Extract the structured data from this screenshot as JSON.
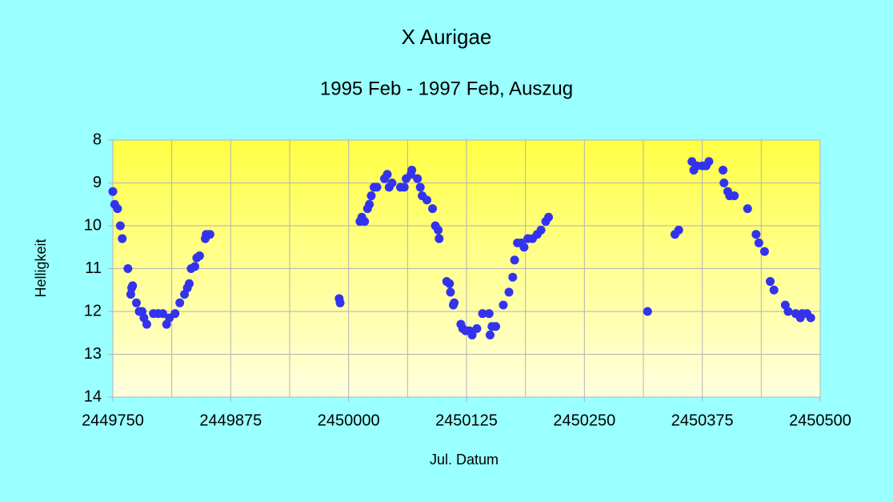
{
  "chart_data": {
    "type": "scatter",
    "title": "X Aurigae",
    "subtitle": "1995 Feb - 1997 Feb, Auszug",
    "x_label": "Jul. Datum",
    "y_label": "Helligkeit",
    "xlim": [
      2449750,
      2450500
    ],
    "xticks": [
      2449750,
      2449875,
      2450000,
      2450125,
      2450250,
      2450375,
      2450500
    ],
    "x_minor_grid": [
      2449812.5,
      2449937.5,
      2450062.5,
      2450187.5,
      2450312.5,
      2450437.5
    ],
    "ylim": [
      8,
      14
    ],
    "y_reversed": true,
    "yticks": [
      8,
      9,
      10,
      11,
      12,
      13,
      14
    ],
    "grid": true,
    "series": [
      {
        "color": "#3333ee",
        "x": [
          2449750,
          2449752,
          2449755,
          2449758,
          2449760,
          2449766,
          2449770,
          2449769,
          2449771,
          2449775,
          2449778,
          2449781,
          2449783,
          2449786,
          2449793,
          2449798,
          2449803,
          2449807,
          2449810,
          2449816,
          2449821,
          2449826,
          2449829,
          2449831,
          2449833,
          2449837,
          2449839,
          2449842,
          2449848,
          2449849,
          2449853,
          2449990,
          2449991,
          2450012,
          2450014,
          2450017,
          2450020,
          2450022,
          2450024,
          2450027,
          2450030,
          2450038,
          2450041,
          2450043,
          2450046,
          2450055,
          2450059,
          2450061,
          2450066,
          2450067,
          2450073,
          2450076,
          2450078,
          2450083,
          2450089,
          2450092,
          2450095,
          2450096,
          2450104,
          2450107,
          2450108,
          2450111,
          2450112,
          2450119,
          2450121,
          2450124,
          2450128,
          2450131,
          2450136,
          2450142,
          2450149,
          2450150,
          2450152,
          2450156,
          2450164,
          2450170,
          2450174,
          2450176,
          2450179,
          2450183,
          2450186,
          2450190,
          2450195,
          2450200,
          2450204,
          2450209,
          2450212,
          2450317,
          2450346,
          2450350,
          2450364,
          2450366,
          2450369,
          2450375,
          2450379,
          2450382,
          2450397,
          2450398,
          2450402,
          2450404,
          2450409,
          2450423,
          2450432,
          2450435,
          2450441,
          2450447,
          2450451,
          2450463,
          2450466,
          2450474,
          2450479,
          2450481,
          2450486,
          2450490
        ],
        "values": [
          9.2,
          9.5,
          9.6,
          10.0,
          10.3,
          11.0,
          11.45,
          11.6,
          11.4,
          11.8,
          12.0,
          12.0,
          12.15,
          12.3,
          12.05,
          12.05,
          12.05,
          12.3,
          12.15,
          12.05,
          11.8,
          11.6,
          11.45,
          11.35,
          11.0,
          10.95,
          10.75,
          10.7,
          10.3,
          10.2,
          10.2,
          11.7,
          11.8,
          9.9,
          9.8,
          9.9,
          9.6,
          9.5,
          9.3,
          9.1,
          9.1,
          8.9,
          8.8,
          9.1,
          9.0,
          9.1,
          9.1,
          8.9,
          8.8,
          8.7,
          8.9,
          9.1,
          9.3,
          9.4,
          9.6,
          10.0,
          10.1,
          10.3,
          11.3,
          11.35,
          11.55,
          11.85,
          11.8,
          12.3,
          12.4,
          12.45,
          12.45,
          12.55,
          12.4,
          12.05,
          12.05,
          12.55,
          12.35,
          12.35,
          11.85,
          11.55,
          11.2,
          10.8,
          10.4,
          10.4,
          10.5,
          10.3,
          10.3,
          10.2,
          10.1,
          9.9,
          9.8,
          12.0,
          10.2,
          10.1,
          8.5,
          8.7,
          8.6,
          8.6,
          8.6,
          8.5,
          8.7,
          9.0,
          9.2,
          9.3,
          9.3,
          9.6,
          10.2,
          10.4,
          10.6,
          11.3,
          11.5,
          11.85,
          12.0,
          12.05,
          12.15,
          12.05,
          12.05,
          12.15
        ]
      }
    ]
  }
}
